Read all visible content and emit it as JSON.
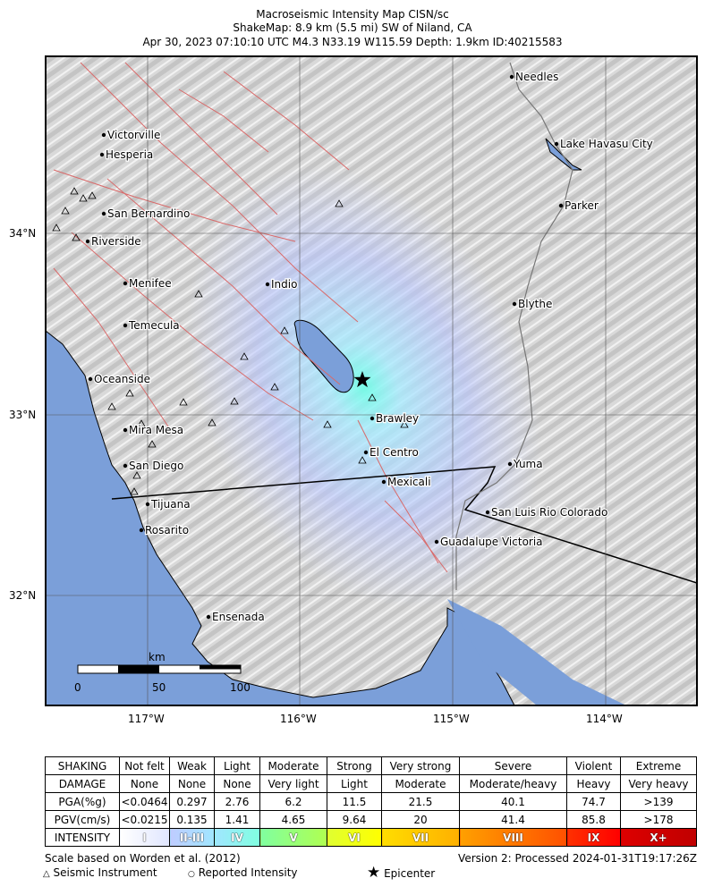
{
  "title": {
    "line1": "Macroseismic Intensity Map CISN/sc",
    "line2": "ShakeMap: 8.9 km (5.5 mi) SW of Niland, CA",
    "line3": "Apr 30, 2023 07:10:10 UTC M4.3 N33.19 W115.59 Depth: 1.9km ID:40215583"
  },
  "map": {
    "lat_ticks": [
      "34°N",
      "33°N",
      "32°N"
    ],
    "lon_ticks": [
      "117°W",
      "116°W",
      "115°W",
      "114°W"
    ],
    "cities": [
      "Needles",
      "Lake Havasu City",
      "Victorville",
      "Hesperia",
      "San Bernardino",
      "Parker",
      "Riverside",
      "Indio",
      "Menifee",
      "Blythe",
      "Temecula",
      "Oceanside",
      "Brawley",
      "Mira Mesa",
      "El Centro",
      "Yuma",
      "San Diego",
      "Mexicali",
      "Tijuana",
      "San Luis Rio Colorado",
      "Rosarito",
      "Guadalupe Victoria",
      "Ensenada"
    ],
    "scale_bar": {
      "unit": "km",
      "labels": [
        "0",
        "50",
        "100"
      ]
    },
    "colors": {
      "ocean": "#7b9fd9",
      "terrain": "#d8d8d8",
      "faults": "#d96a6a",
      "epicenter": "#000000"
    }
  },
  "legend": {
    "rows": [
      {
        "header": "SHAKING",
        "cells": [
          "Not felt",
          "Weak",
          "Light",
          "Moderate",
          "Strong",
          "Very strong",
          "Severe",
          "Violent",
          "Extreme"
        ]
      },
      {
        "header": "DAMAGE",
        "cells": [
          "None",
          "None",
          "None",
          "Very light",
          "Light",
          "Moderate",
          "Moderate/heavy",
          "Heavy",
          "Very heavy"
        ]
      },
      {
        "header": "PGA(%g)",
        "cells": [
          "<0.0464",
          "0.297",
          "2.76",
          "6.2",
          "11.5",
          "21.5",
          "40.1",
          "74.7",
          ">139"
        ]
      },
      {
        "header": "PGV(cm/s)",
        "cells": [
          "<0.0215",
          "0.135",
          "1.41",
          "4.65",
          "9.64",
          "20",
          "41.4",
          "85.8",
          ">178"
        ]
      }
    ],
    "intensity": {
      "header": "INTENSITY",
      "cells": [
        "I",
        "II-III",
        "IV",
        "V",
        "VI",
        "VII",
        "VIII",
        "IX",
        "X+"
      ],
      "colors": [
        [
          "#ffffff",
          "#e0e6ff"
        ],
        [
          "#bfccff",
          "#a0e6ff"
        ],
        [
          "#a0e6ff",
          "#80ffe0"
        ],
        [
          "#80ffa0",
          "#b0ff50"
        ],
        [
          "#e0ff30",
          "#ffff00"
        ],
        [
          "#ffdd00",
          "#ffb000"
        ],
        [
          "#ffa000",
          "#ff5000"
        ],
        [
          "#ff3000",
          "#ff0000"
        ],
        [
          "#dd0000",
          "#c00000"
        ]
      ]
    },
    "scale_note": "Scale based on Worden et al. (2012)",
    "version": "Version 2: Processed 2024-01-31T19:17:26Z",
    "symbols": {
      "instrument": "Seismic Instrument",
      "reported": "Reported Intensity",
      "epicenter": "Epicenter"
    }
  }
}
